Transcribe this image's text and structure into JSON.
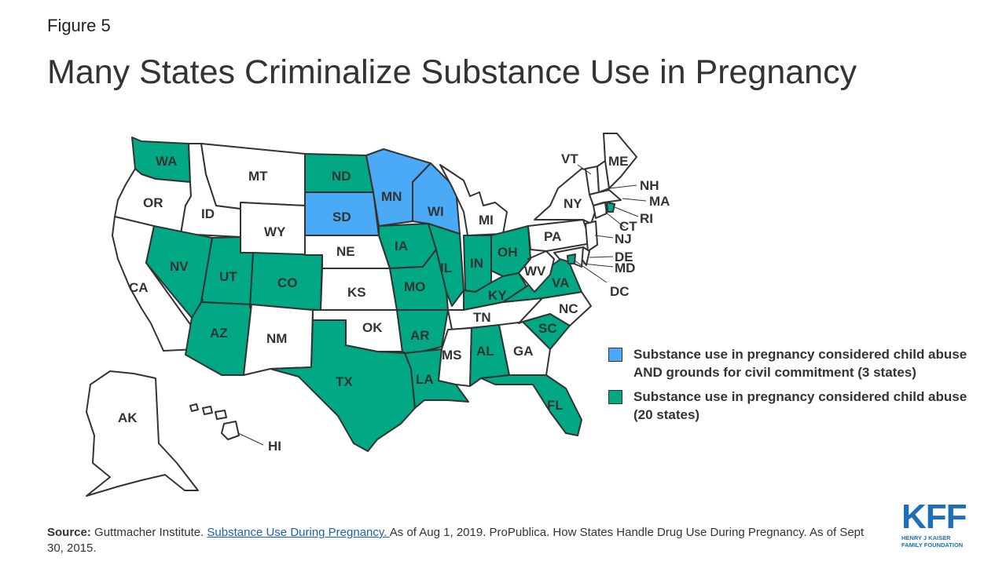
{
  "figure_label": "Figure 5",
  "title": "Many States Criminalize Substance Use in Pregnancy",
  "colors": {
    "civil_commitment": "#4aaaf5",
    "child_abuse": "#00a884",
    "none": "#ffffff",
    "outline": "#333333",
    "brand": "#1e6fb8"
  },
  "states": {
    "WA": "child_abuse",
    "OR": "none",
    "CA": "none",
    "ID": "none",
    "NV": "child_abuse",
    "MT": "none",
    "WY": "none",
    "UT": "child_abuse",
    "AZ": "child_abuse",
    "CO": "child_abuse",
    "NM": "none",
    "ND": "child_abuse",
    "SD": "civil_commitment",
    "NE": "none",
    "KS": "none",
    "OK": "none",
    "TX": "child_abuse",
    "MN": "civil_commitment",
    "IA": "child_abuse",
    "MO": "child_abuse",
    "AR": "child_abuse",
    "LA": "child_abuse",
    "WI": "civil_commitment",
    "IL": "child_abuse",
    "MI": "none",
    "IN": "child_abuse",
    "OH": "child_abuse",
    "KY": "child_abuse",
    "TN": "none",
    "MS": "none",
    "AL": "child_abuse",
    "GA": "none",
    "FL": "child_abuse",
    "SC": "child_abuse",
    "NC": "none",
    "VA": "child_abuse",
    "WV": "none",
    "PA": "none",
    "NY": "none",
    "VT": "none",
    "NH": "none",
    "ME": "none",
    "MA": "none",
    "RI": "child_abuse",
    "CT": "none",
    "NJ": "none",
    "DE": "none",
    "MD": "none",
    "DC": "child_abuse",
    "AK": "none",
    "HI": "none"
  },
  "legend": [
    {
      "category": "civil_commitment",
      "label": "Substance use in pregnancy considered child abuse AND grounds for civil commitment (3 states)"
    },
    {
      "category": "child_abuse",
      "label": "Substance use in pregnancy considered child abuse (20 states)"
    }
  ],
  "source": {
    "prefix": "Source:",
    "text1": " Guttmacher Institute.  ",
    "link": "Substance Use During Pregnancy. ",
    "text2": "As of Aug 1, 2019. ProPublica. How States Handle Drug Use During Pregnancy. As of Sept 30, 2015."
  },
  "logo": {
    "main": "KFF",
    "line1": "HENRY J KAISER",
    "line2": "FAMILY FOUNDATION"
  }
}
